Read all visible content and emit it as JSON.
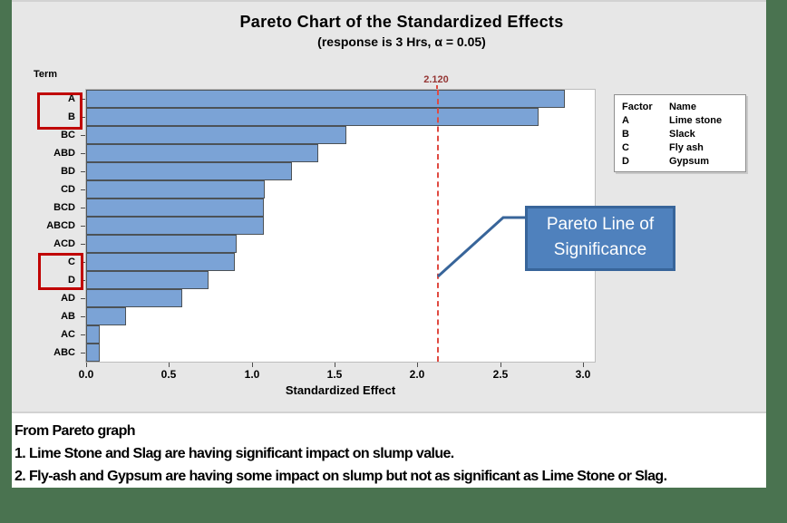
{
  "title": "Pareto Chart of the Standardized Effects",
  "subtitle": "(response is 3 Hrs, α = 0.05)",
  "axis": {
    "term_label": "Term",
    "x_label": "Standardized Effect",
    "x_ticks": [
      "0.0",
      "0.5",
      "1.0",
      "1.5",
      "2.0",
      "2.5",
      "3.0"
    ]
  },
  "reference_line": {
    "value": 2.12,
    "value_label": "2.120"
  },
  "legend": {
    "headers": [
      "Factor",
      "Name"
    ],
    "rows": [
      [
        "A",
        "Lime stone"
      ],
      [
        "B",
        "Slack"
      ],
      [
        "C",
        "Fly ash"
      ],
      [
        "D",
        "Gypsum"
      ]
    ]
  },
  "callout": {
    "line1": "Pareto Line of",
    "line2": "Significance"
  },
  "notes": [
    "From Pareto graph",
    "1. Lime Stone and Slag are having significant impact on slump value.",
    "2. Fly-ash and Gypsum are having some impact on slump but not as significant as Lime Stone or Slag."
  ],
  "colors": {
    "slide_bg": "#4a7350",
    "figure_bg": "#e7e7e7",
    "bar_fill": "#7ba3d6",
    "bar_border": "#4c5257",
    "ref_line": "#e04a41",
    "ref_label": "#953735",
    "highlight": "#c00000",
    "callout_fill": "#4f81bd",
    "callout_border": "#38659a"
  },
  "chart_data": {
    "type": "bar",
    "orientation": "horizontal",
    "title": "Pareto Chart of the Standardized Effects",
    "subtitle": "(response is 3 Hrs, α = 0.05)",
    "xlabel": "Standardized Effect",
    "ylabel": "Term",
    "xlim": [
      0,
      3.07
    ],
    "x_tick_values": [
      0.0,
      0.5,
      1.0,
      1.5,
      2.0,
      2.5,
      3.0
    ],
    "reference_line": 2.12,
    "reference_line_label": "2.120",
    "categories": [
      "A",
      "B",
      "BC",
      "ABD",
      "BD",
      "CD",
      "BCD",
      "ABCD",
      "ACD",
      "C",
      "D",
      "AD",
      "AB",
      "AC",
      "ABC"
    ],
    "values": [
      2.89,
      2.73,
      1.57,
      1.4,
      1.24,
      1.08,
      1.07,
      1.07,
      0.91,
      0.9,
      0.74,
      0.58,
      0.24,
      0.08,
      0.08
    ],
    "highlighted_categories": [
      [
        "A",
        "B"
      ],
      [
        "C",
        "D"
      ]
    ],
    "legend_position": "top-right",
    "grid": false
  }
}
